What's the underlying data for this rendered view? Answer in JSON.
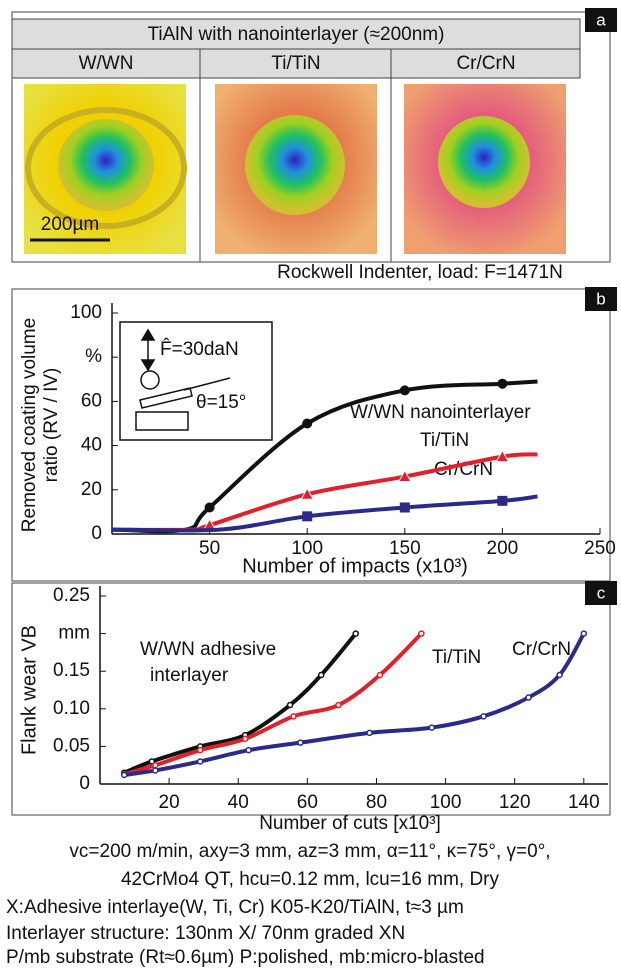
{
  "panel_a": {
    "label": "a",
    "title": "TiAlN with nanointerlayer (≈200nm)",
    "columns": [
      "W/WN",
      "Ti/TiN",
      "Cr/CrN"
    ],
    "scale": "200µm",
    "caption": "Rockwell Indenter, load: F=1471N"
  },
  "chart_data": [
    {
      "type": "line",
      "label": "b",
      "ylabel": [
        "Removed coating volume",
        "ratio (RV / IV)"
      ],
      "xlabel": "Number of impacts (x10³)",
      "xlim": [
        0,
        250
      ],
      "ylim": [
        0,
        100
      ],
      "xticks": [
        50,
        100,
        150,
        200,
        250
      ],
      "yticks": [
        0,
        20,
        40,
        60,
        {
          "value": 80,
          "label": "%"
        },
        100
      ],
      "annotations": [
        "W/WN nanointerlayer",
        "Ti/TiN",
        "Cr/CrN"
      ],
      "inset": [
        "F̂=30daN",
        "θ=15°"
      ],
      "series": [
        {
          "color": "#111111",
          "marker": "circle",
          "x": [
            0,
            38,
            50,
            100,
            150,
            200,
            218
          ],
          "values": [
            2,
            2,
            12,
            50,
            65,
            68,
            69
          ],
          "markers": {
            "x": [
              50,
              100,
              150,
              200
            ],
            "values": [
              12,
              50,
              65,
              68
            ]
          }
        },
        {
          "color": "#e0202a",
          "marker": "triangle",
          "x": [
            0,
            40,
            50,
            100,
            150,
            200,
            218
          ],
          "values": [
            2,
            2,
            4,
            18,
            26,
            35,
            36
          ],
          "markers": {
            "x": [
              50,
              100,
              150,
              200
            ],
            "values": [
              4,
              18,
              26,
              35
            ]
          }
        },
        {
          "color": "#2a2a8a",
          "marker": "square",
          "x": [
            0,
            55,
            100,
            150,
            200,
            218
          ],
          "values": [
            2,
            2,
            8,
            12,
            15,
            17
          ],
          "markers": {
            "x": [
              100,
              150,
              200
            ],
            "values": [
              8,
              12,
              15
            ]
          }
        }
      ]
    },
    {
      "type": "line",
      "label": "c",
      "ylabel": [
        "Flank wear VB"
      ],
      "xlabel": "Number of cuts [x10³]",
      "xlim": [
        0,
        147
      ],
      "ylim": [
        0,
        0.25
      ],
      "xticks": [
        20,
        40,
        60,
        80,
        100,
        120,
        140
      ],
      "yticks": [
        0,
        0.05,
        {
          "value": 0.1,
          "label": "0.10"
        },
        0.15,
        {
          "value": 0.2,
          "label": "mm"
        },
        0.25
      ],
      "annotations": [
        "W/WN adhesive",
        "interlayer",
        "Ti/TiN",
        "Cr/CrN"
      ],
      "series": [
        {
          "color": "#111111",
          "marker": "dot",
          "x": [
            7,
            15,
            29,
            42,
            55,
            64,
            74
          ],
          "values": [
            0.015,
            0.03,
            0.05,
            0.065,
            0.105,
            0.145,
            0.2
          ]
        },
        {
          "color": "#e0202a",
          "marker": "dot",
          "x": [
            7,
            16,
            29,
            42,
            56,
            69,
            81,
            93
          ],
          "values": [
            0.013,
            0.025,
            0.045,
            0.06,
            0.09,
            0.105,
            0.145,
            0.2
          ]
        },
        {
          "color": "#2a2a8a",
          "marker": "dot",
          "x": [
            7,
            16,
            29,
            43,
            58,
            78,
            96,
            111,
            124,
            133,
            140
          ],
          "values": [
            0.012,
            0.018,
            0.03,
            0.045,
            0.055,
            0.068,
            0.075,
            0.09,
            0.115,
            0.145,
            0.2
          ]
        }
      ]
    }
  ],
  "footer": [
    "vc=200 m/min, axy=3 mm, az=3 mm, α=11°, κ=75°, γ=0°,",
    "42CrMo4 QT, hcu=0.12 mm, lcu=16 mm, Dry",
    "X:Adhesive interlaye(W, Ti, Cr) K05-K20/TiAlN, t≈3 µm",
    "Interlayer structure: 130nm X/ 70nm graded XN",
    "P/mb substrate (Rt≈0.6µm)  P:polished, mb:micro-blasted"
  ]
}
